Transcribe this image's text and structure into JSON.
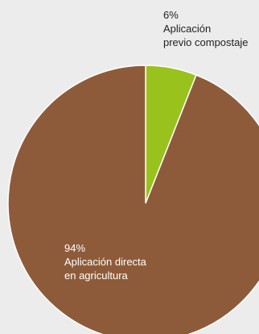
{
  "chart_data": {
    "type": "pie",
    "title": "",
    "slices": [
      {
        "value": 94,
        "percent_label": "94%",
        "label_lines": [
          "Aplicación directa",
          "en agricultura"
        ],
        "color": "#8e5b3a"
      },
      {
        "value": 6,
        "percent_label": "6%",
        "label_lines": [
          "Aplicación",
          "previo compostaje"
        ],
        "color": "#99c21c"
      }
    ]
  },
  "colors": {
    "background": "#ececec",
    "separator": "#ffffff"
  }
}
